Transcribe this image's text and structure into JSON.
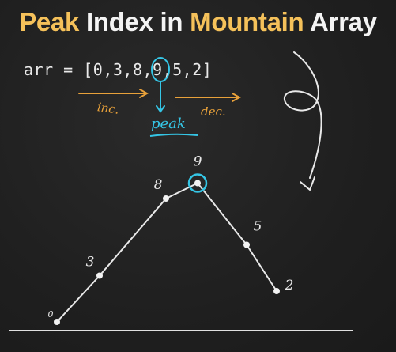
{
  "title": {
    "part1": "Peak",
    "part2": "Index in",
    "part3": "Mountain",
    "part4": "Array"
  },
  "code": {
    "prefix": "arr = [0,3,8,",
    "peak_value": "9",
    "suffix": ",5,2]"
  },
  "annotations": {
    "increasing": "inc.",
    "decreasing": "dec.",
    "peak": "peak"
  },
  "chart_data": {
    "type": "line",
    "x": [
      0,
      1,
      2,
      3,
      4,
      5
    ],
    "values": [
      0,
      3,
      8,
      9,
      5,
      2
    ],
    "point_labels": [
      "0",
      "3",
      "8",
      "9",
      "5",
      "2"
    ],
    "peak_index": 3
  },
  "colors": {
    "title_accent": "#f5c15a",
    "title_text": "#f4f4f4",
    "annotation_orange": "#e8a13a",
    "annotation_cyan": "#35c6e6",
    "chalk": "#e9e9e9"
  }
}
